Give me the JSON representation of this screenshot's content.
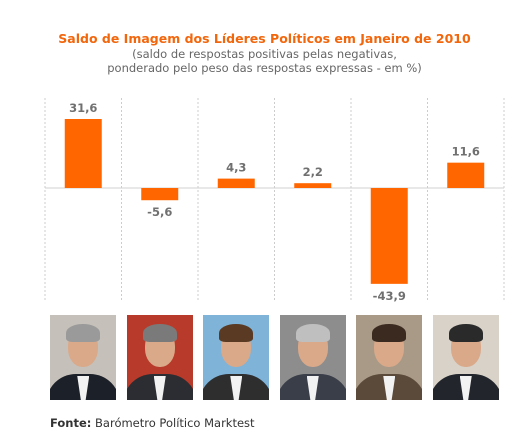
{
  "source": {
    "label": "Fonte:",
    "text": " Barómetro Político Marktest"
  },
  "photos": [
    {
      "name": "photo-1",
      "hair": "#9a9a9a",
      "suit": "#1c2028",
      "bg": "#c6c0ba"
    },
    {
      "name": "photo-2",
      "hair": "#7a7a7a",
      "suit": "#2b2d33",
      "bg": "#b83a2a"
    },
    {
      "name": "photo-3",
      "hair": "#5a3a22",
      "suit": "#2e2e2e",
      "bg": "#7fb3d8"
    },
    {
      "name": "photo-4",
      "hair": "#bfbfbf",
      "suit": "#3a3e48",
      "bg": "#8d8d8d"
    },
    {
      "name": "photo-5",
      "hair": "#3a2a20",
      "suit": "#5b4a3a",
      "bg": "#a89a86"
    },
    {
      "name": "photo-6",
      "hair": "#2a2a2a",
      "suit": "#22252c",
      "bg": "#d8d2c8"
    }
  ],
  "chart_data": {
    "type": "bar",
    "title": "Saldo de Imagem dos Líderes Políticos em Janeiro de 2010",
    "subtitle": "(saldo de respostas positivas pelas negativas,\nponderado pelo peso das respostas expressas - em %)",
    "categories": [
      "",
      "",
      "",
      "",
      "",
      ""
    ],
    "values": [
      31.6,
      -5.6,
      4.3,
      2.2,
      -43.9,
      11.6
    ],
    "labels": [
      "31,6",
      "-5,6",
      "4,3",
      "2,2",
      "-43,9",
      "11,6"
    ],
    "bar_color": "#ff6600",
    "label_color": "#707070",
    "ylim": [
      -50,
      40
    ],
    "grid": "vertical dotted separators"
  }
}
